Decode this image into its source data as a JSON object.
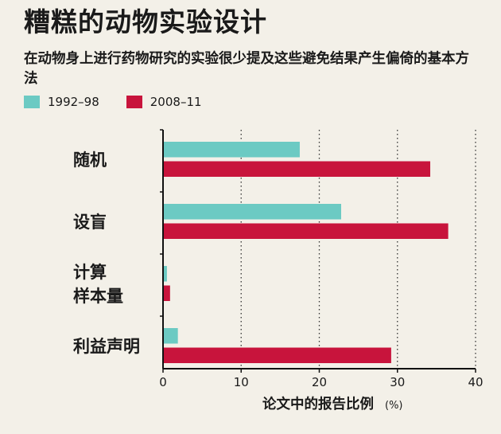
{
  "title": "糟糕的动物实验设计",
  "subtitle": "在动物身上进行药物研究的实验很少提及这些避免结果产生偏倚的基本方法",
  "colors": {
    "series1": "#6ccac3",
    "series2": "#c8143c",
    "background": "#f3f0e8"
  },
  "chart_data": {
    "type": "bar",
    "orientation": "horizontal",
    "categories": [
      [
        "随机"
      ],
      [
        "设盲"
      ],
      [
        "计算",
        "样本量"
      ],
      [
        "利益声明"
      ]
    ],
    "series": [
      {
        "name": "1992–98",
        "values": [
          17.5,
          22.8,
          0.5,
          1.9
        ]
      },
      {
        "name": "2008–11",
        "values": [
          34.2,
          36.5,
          0.9,
          29.2
        ]
      }
    ],
    "xlim": [
      0,
      40
    ],
    "xticks": [
      0,
      10,
      20,
      30,
      40
    ],
    "xlabel": "论文中的报告比例",
    "xunit": "(%)",
    "grid": "vertical dotted",
    "legend": "top-left"
  }
}
